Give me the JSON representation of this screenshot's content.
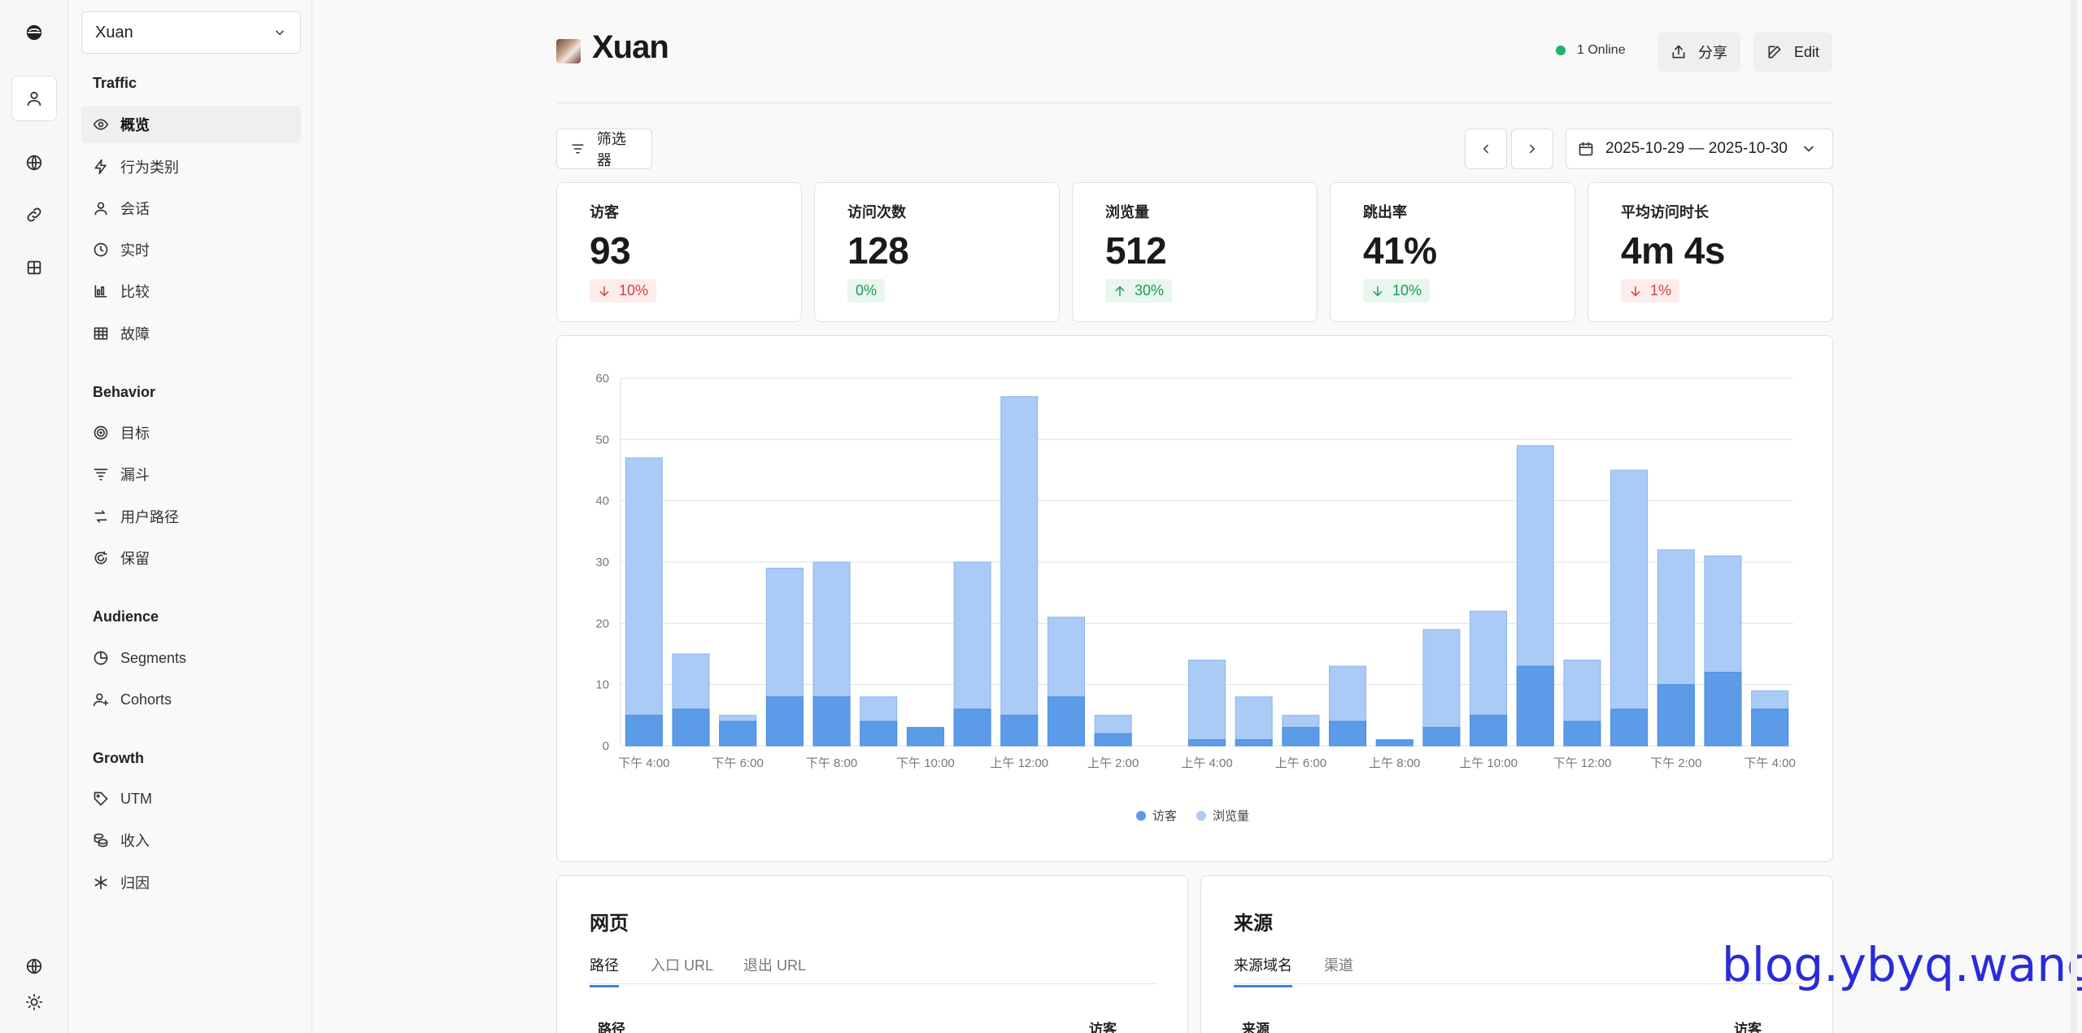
{
  "site": {
    "name": "Xuan"
  },
  "sidebar": {
    "sections": [
      {
        "title": "Traffic",
        "items": [
          {
            "label": "概览",
            "icon": "eye-icon"
          },
          {
            "label": "行为类别",
            "icon": "lightning-icon"
          },
          {
            "label": "会话",
            "icon": "user-icon"
          },
          {
            "label": "实时",
            "icon": "clock-icon"
          },
          {
            "label": "比较",
            "icon": "compare-icon"
          },
          {
            "label": "故障",
            "icon": "table-icon"
          }
        ]
      },
      {
        "title": "Behavior",
        "items": [
          {
            "label": "目标",
            "icon": "target-icon"
          },
          {
            "label": "漏斗",
            "icon": "funnel-icon"
          },
          {
            "label": "用户路径",
            "icon": "path-icon"
          },
          {
            "label": "保留",
            "icon": "retention-icon"
          }
        ]
      },
      {
        "title": "Audience",
        "items": [
          {
            "label": "Segments",
            "icon": "pie-icon"
          },
          {
            "label": "Cohorts",
            "icon": "user-plus-icon"
          }
        ]
      },
      {
        "title": "Growth",
        "items": [
          {
            "label": "UTM",
            "icon": "tag-icon"
          },
          {
            "label": "收入",
            "icon": "coins-icon"
          },
          {
            "label": "归因",
            "icon": "snowflake-icon"
          }
        ]
      }
    ]
  },
  "header": {
    "title": "Xuan",
    "online": "1 Online",
    "share_label": "分享",
    "edit_label": "Edit"
  },
  "toolbar": {
    "filter_label": "筛选器",
    "date_range": "2025-10-29 — 2025-10-30"
  },
  "metrics": [
    {
      "label": "访客",
      "value": "93",
      "change": "10%",
      "direction": "down"
    },
    {
      "label": "访问次数",
      "value": "128",
      "change": "0%",
      "direction": "flat"
    },
    {
      "label": "浏览量",
      "value": "512",
      "change": "30%",
      "direction": "up"
    },
    {
      "label": "跳出率",
      "value": "41%",
      "change": "10%",
      "direction": "down-good"
    },
    {
      "label": "平均访问时长",
      "value": "4m 4s",
      "change": "1%",
      "direction": "down"
    }
  ],
  "chart_data": {
    "type": "bar",
    "x_tick_labels": [
      "下午 4:00",
      "下午 6:00",
      "下午 8:00",
      "下午 10:00",
      "上午 12:00",
      "上午 2:00",
      "上午 4:00",
      "上午 6:00",
      "上午 8:00",
      "上午 10:00",
      "下午 12:00",
      "下午 2:00",
      "下午 4:00"
    ],
    "ylim": [
      0,
      60
    ],
    "y_ticks": [
      0,
      10,
      20,
      30,
      40,
      50,
      60
    ],
    "grid": true,
    "legend": "bottom-center",
    "series": [
      {
        "name": "访客",
        "color": "#5b9be8",
        "values": [
          5,
          6,
          4,
          8,
          8,
          4,
          3,
          6,
          5,
          8,
          2,
          0,
          1,
          1,
          3,
          4,
          1,
          3,
          5,
          13,
          4,
          6,
          10,
          12,
          6
        ]
      },
      {
        "name": "浏览量",
        "color": "#a9cbf5",
        "values": [
          47,
          15,
          5,
          29,
          30,
          8,
          3,
          30,
          57,
          21,
          5,
          0,
          14,
          8,
          5,
          13,
          1,
          19,
          22,
          49,
          14,
          45,
          32,
          31,
          9
        ]
      }
    ]
  },
  "panels": [
    {
      "title": "网页",
      "tabs": [
        "路径",
        "入口 URL",
        "退出 URL"
      ],
      "col_left": "路径",
      "col_right": "访客"
    },
    {
      "title": "来源",
      "tabs": [
        "来源域名",
        "渠道"
      ],
      "col_left": "来源",
      "col_right": "访客"
    }
  ],
  "watermark": "blog.ybyq.wang"
}
